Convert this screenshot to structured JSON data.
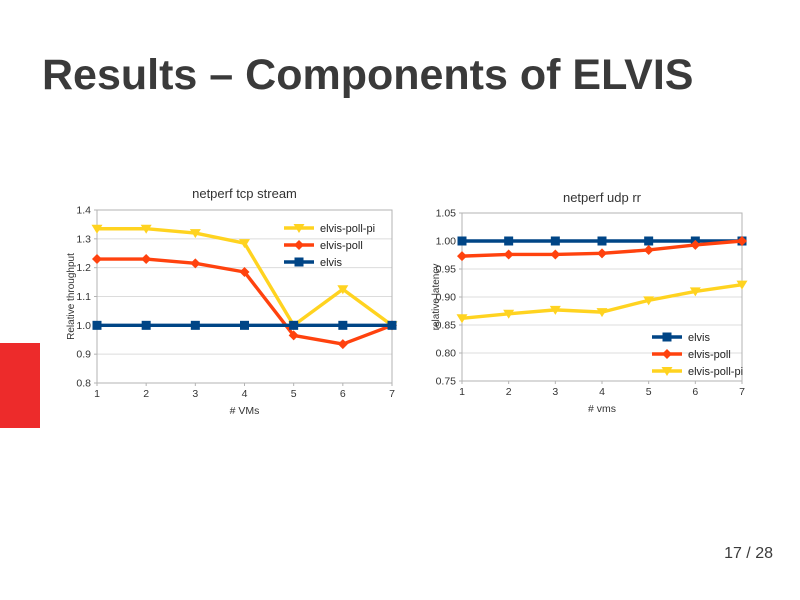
{
  "slide": {
    "title": "Results – Components of ELVIS",
    "page_number": "17 / 28",
    "accent_color": "#ed2b2b"
  },
  "chart_data": [
    {
      "type": "line",
      "title": "netperf tcp stream",
      "xlabel": "# VMs",
      "ylabel": "Relative throughput",
      "x": [
        1,
        2,
        3,
        4,
        5,
        6,
        7
      ],
      "xtick_labels": [
        "1",
        "2",
        "3",
        "4",
        "5",
        "6",
        "7"
      ],
      "ylim": [
        0.8,
        1.4
      ],
      "yticks": [
        0.8,
        0.9,
        1.0,
        1.1,
        1.2,
        1.3,
        1.4
      ],
      "ytick_labels": [
        "0.8",
        "0.9",
        "1.0",
        "1.1",
        "1.2",
        "1.3",
        "1.4"
      ],
      "grid": "horizontal",
      "legend_position": "top-right",
      "series": [
        {
          "name": "elvis-poll-pi",
          "color": "#ffd320",
          "marker": "triangle-down",
          "values": [
            1.335,
            1.335,
            1.32,
            1.285,
            1.0,
            1.125,
            1.0
          ]
        },
        {
          "name": "elvis-poll",
          "color": "#ff420e",
          "marker": "diamond",
          "values": [
            1.23,
            1.23,
            1.215,
            1.185,
            0.965,
            0.935,
            1.0
          ]
        },
        {
          "name": "elvis",
          "color": "#004586",
          "marker": "square",
          "values": [
            1.0,
            1.0,
            1.0,
            1.0,
            1.0,
            1.0,
            1.0
          ]
        }
      ]
    },
    {
      "type": "line",
      "title": "netperf udp rr",
      "xlabel": "# vms",
      "ylabel": "relative latency",
      "x": [
        1,
        2,
        3,
        4,
        5,
        6,
        7
      ],
      "xtick_labels": [
        "1",
        "2",
        "3",
        "4",
        "5",
        "6",
        "7"
      ],
      "ylim": [
        0.75,
        1.05
      ],
      "yticks": [
        0.75,
        0.8,
        0.85,
        0.9,
        0.95,
        1.0,
        1.05
      ],
      "ytick_labels": [
        "0.75",
        "0.80",
        "0.85",
        "0.90",
        "0.95",
        "1.00",
        "1.05"
      ],
      "grid": "horizontal",
      "legend_position": "bottom-right",
      "series": [
        {
          "name": "elvis",
          "color": "#004586",
          "marker": "square",
          "values": [
            1.0,
            1.0,
            1.0,
            1.0,
            1.0,
            1.0,
            1.0
          ]
        },
        {
          "name": "elvis-poll",
          "color": "#ff420e",
          "marker": "diamond",
          "values": [
            0.973,
            0.976,
            0.976,
            0.978,
            0.984,
            0.993,
            1.0
          ]
        },
        {
          "name": "elvis-poll-pi",
          "color": "#ffd320",
          "marker": "triangle-down",
          "values": [
            0.862,
            0.87,
            0.877,
            0.873,
            0.894,
            0.91,
            0.922
          ]
        }
      ]
    }
  ]
}
